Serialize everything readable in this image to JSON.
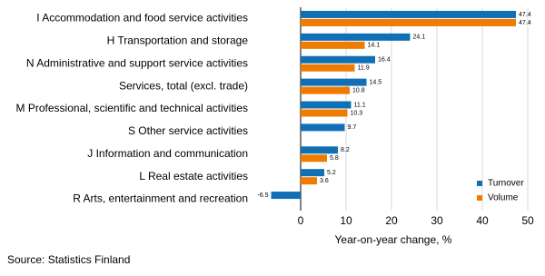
{
  "chart_data": {
    "type": "hbar",
    "categories": [
      "I Accommodation and food service activities",
      "H Transportation and storage",
      "N Administrative and support service activities",
      "Services, total (excl. trade)",
      "M Professional, scientific and technical activities",
      "S Other service activities",
      "J Information and communication",
      "L Real estate activities",
      "R Arts, entertainment and recreation"
    ],
    "series": [
      {
        "name": "Turnover",
        "color": "#1170b5",
        "values": [
          47.4,
          24.1,
          16.4,
          14.5,
          11.1,
          9.7,
          8.2,
          5.2,
          -6.5
        ]
      },
      {
        "name": "Volume",
        "color": "#ef7c00",
        "values": [
          47.4,
          14.1,
          11.9,
          10.8,
          10.3,
          null,
          5.8,
          3.6,
          null
        ]
      }
    ],
    "xlabel": "Year-on-year change, %",
    "xlim": [
      -10,
      52
    ],
    "xticks": [
      0,
      10,
      20,
      30,
      40,
      50
    ],
    "grid": true,
    "legend": "lower right",
    "source": "Source: Statistics Finland"
  }
}
